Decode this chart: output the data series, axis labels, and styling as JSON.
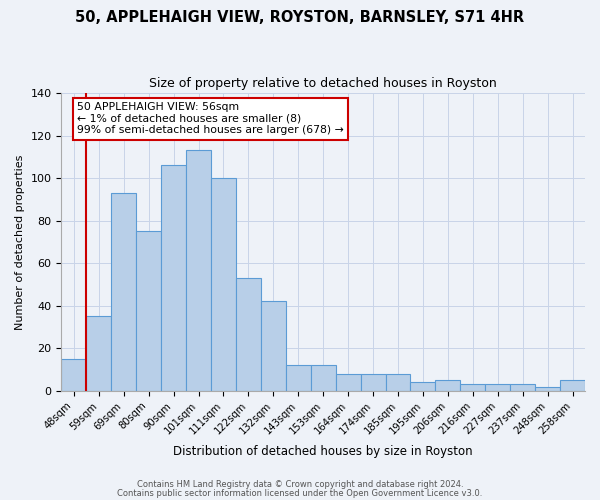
{
  "title": "50, APPLEHAIGH VIEW, ROYSTON, BARNSLEY, S71 4HR",
  "subtitle": "Size of property relative to detached houses in Royston",
  "xlabel": "Distribution of detached houses by size in Royston",
  "ylabel": "Number of detached properties",
  "bar_labels": [
    "48sqm",
    "59sqm",
    "69sqm",
    "80sqm",
    "90sqm",
    "101sqm",
    "111sqm",
    "122sqm",
    "132sqm",
    "143sqm",
    "153sqm",
    "164sqm",
    "174sqm",
    "185sqm",
    "195sqm",
    "206sqm",
    "216sqm",
    "227sqm",
    "237sqm",
    "248sqm",
    "258sqm"
  ],
  "bar_values": [
    15,
    35,
    93,
    75,
    106,
    113,
    100,
    53,
    42,
    12,
    12,
    8,
    8,
    8,
    4,
    5,
    3,
    3,
    3,
    2,
    5
  ],
  "bar_color": "#b8cfe8",
  "bar_edgecolor": "#5b9bd5",
  "ylim": [
    0,
    140
  ],
  "yticks": [
    0,
    20,
    40,
    60,
    80,
    100,
    120,
    140
  ],
  "annotation_box_text": "50 APPLEHAIGH VIEW: 56sqm\n← 1% of detached houses are smaller (8)\n99% of semi-detached houses are larger (678) →",
  "footer_line1": "Contains HM Land Registry data © Crown copyright and database right 2024.",
  "footer_line2": "Contains public sector information licensed under the Open Government Licence v3.0.",
  "grid_color": "#c8d4e8",
  "property_line_color": "#cc0000",
  "annotation_box_edgecolor": "#cc0000",
  "background_color": "#eef2f8"
}
